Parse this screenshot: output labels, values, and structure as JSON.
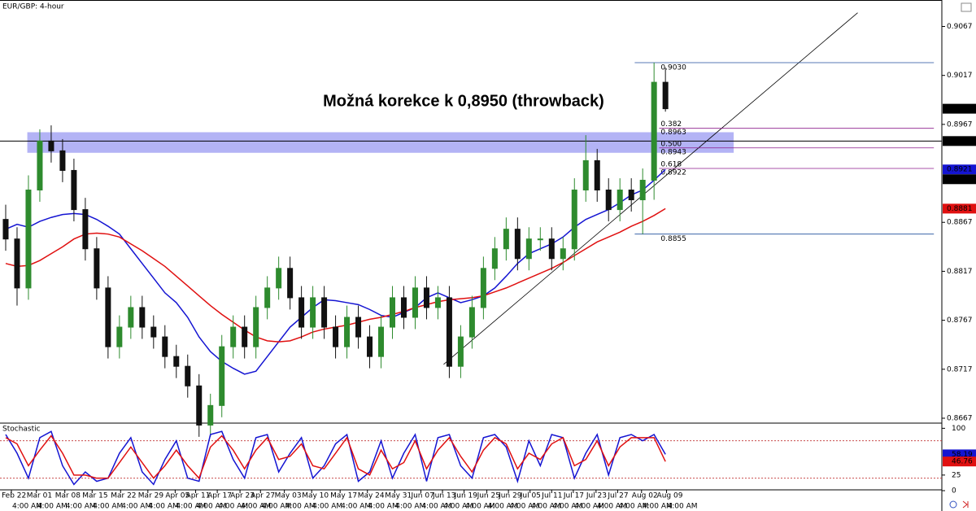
{
  "chart_data": {
    "type": "candlestick",
    "title": "EUR/GBP: 4-hour",
    "annotation": "Možná korekce k 0,8950 (throwback)",
    "up_color": "#2e8b2e",
    "down_color": "#111111",
    "candles": {
      "x": [
        0,
        1,
        2,
        3,
        4,
        5,
        6,
        7,
        8,
        9,
        10,
        11,
        12,
        13,
        14,
        15,
        16,
        17,
        18,
        19,
        20,
        21,
        22,
        23,
        24,
        25,
        26,
        27,
        28,
        29,
        30,
        31,
        32,
        33,
        34,
        35,
        36,
        37,
        38,
        39,
        40,
        41,
        42,
        43,
        44,
        45,
        46,
        47,
        48,
        49,
        50,
        51,
        52,
        53,
        54,
        55,
        56,
        57,
        58
      ],
      "open": [
        0.887,
        0.885,
        0.88,
        0.89,
        0.895,
        0.894,
        0.892,
        0.888,
        0.884,
        0.88,
        0.874,
        0.876,
        0.878,
        0.876,
        0.875,
        0.873,
        0.872,
        0.87,
        0.866,
        0.868,
        0.874,
        0.876,
        0.874,
        0.878,
        0.88,
        0.882,
        0.879,
        0.876,
        0.879,
        0.876,
        0.874,
        0.877,
        0.875,
        0.873,
        0.876,
        0.879,
        0.877,
        0.88,
        0.878,
        0.879,
        0.872,
        0.875,
        0.878,
        0.882,
        0.884,
        0.886,
        0.883,
        0.885,
        0.885,
        0.883,
        0.884,
        0.89,
        0.893,
        0.89,
        0.888,
        0.89,
        0.889,
        0.891,
        0.901
      ],
      "high": [
        0.8885,
        0.8862,
        0.8915,
        0.8962,
        0.8966,
        0.8952,
        0.8932,
        0.8892,
        0.8852,
        0.8812,
        0.8772,
        0.8792,
        0.8792,
        0.8772,
        0.8762,
        0.8742,
        0.8732,
        0.8712,
        0.8692,
        0.8752,
        0.8772,
        0.8772,
        0.8792,
        0.8812,
        0.8832,
        0.8832,
        0.8802,
        0.8802,
        0.8802,
        0.8772,
        0.8782,
        0.8782,
        0.8762,
        0.8772,
        0.8802,
        0.8802,
        0.8812,
        0.8812,
        0.8802,
        0.8802,
        0.8762,
        0.8792,
        0.8832,
        0.8852,
        0.8872,
        0.8872,
        0.8862,
        0.8862,
        0.8862,
        0.8852,
        0.8912,
        0.8956,
        0.8942,
        0.8912,
        0.8912,
        0.8912,
        0.8922,
        0.903,
        0.9025
      ],
      "low": [
        0.8838,
        0.8782,
        0.8788,
        0.8888,
        0.8928,
        0.8908,
        0.8868,
        0.8828,
        0.8788,
        0.8728,
        0.8728,
        0.8748,
        0.8748,
        0.8738,
        0.8718,
        0.8708,
        0.8688,
        0.8648,
        0.8648,
        0.8668,
        0.8728,
        0.8728,
        0.8728,
        0.8768,
        0.8788,
        0.8778,
        0.8748,
        0.8748,
        0.8748,
        0.8728,
        0.8728,
        0.8738,
        0.8718,
        0.8718,
        0.8748,
        0.8758,
        0.8758,
        0.8768,
        0.8768,
        0.8708,
        0.8708,
        0.8738,
        0.8768,
        0.8808,
        0.8828,
        0.8818,
        0.8818,
        0.8838,
        0.8818,
        0.8818,
        0.8828,
        0.8888,
        0.8888,
        0.8868,
        0.8868,
        0.8878,
        0.8855,
        0.889,
        0.898
      ],
      "close": [
        0.885,
        0.88,
        0.89,
        0.895,
        0.894,
        0.892,
        0.888,
        0.884,
        0.88,
        0.874,
        0.876,
        0.878,
        0.876,
        0.875,
        0.873,
        0.872,
        0.87,
        0.866,
        0.868,
        0.874,
        0.876,
        0.874,
        0.878,
        0.88,
        0.882,
        0.879,
        0.876,
        0.879,
        0.876,
        0.874,
        0.877,
        0.875,
        0.873,
        0.876,
        0.879,
        0.877,
        0.88,
        0.878,
        0.879,
        0.872,
        0.875,
        0.878,
        0.882,
        0.884,
        0.886,
        0.883,
        0.885,
        0.885,
        0.883,
        0.884,
        0.89,
        0.893,
        0.89,
        0.888,
        0.89,
        0.889,
        0.891,
        0.901,
        0.8983
      ]
    },
    "lines": [
      {
        "color": "#1414d2",
        "values": [
          0.886,
          0.8865,
          0.8862,
          0.8868,
          0.8872,
          0.8875,
          0.8876,
          0.8875,
          0.887,
          0.8863,
          0.8855,
          0.884,
          0.8825,
          0.881,
          0.8795,
          0.8785,
          0.877,
          0.875,
          0.8735,
          0.8725,
          0.8718,
          0.8712,
          0.8715,
          0.873,
          0.8745,
          0.876,
          0.877,
          0.878,
          0.8788,
          0.8787,
          0.8785,
          0.8783,
          0.8778,
          0.8772,
          0.877,
          0.8775,
          0.878,
          0.879,
          0.8795,
          0.879,
          0.8785,
          0.8788,
          0.8792,
          0.88,
          0.8812,
          0.8825,
          0.8835,
          0.884,
          0.8845,
          0.8852,
          0.8862,
          0.887,
          0.8875,
          0.888,
          0.8887,
          0.8895,
          0.89,
          0.891,
          0.8921
        ]
      },
      {
        "color": "#e01010",
        "values": [
          0.8825,
          0.8822,
          0.8823,
          0.8828,
          0.8835,
          0.8842,
          0.885,
          0.8855,
          0.8856,
          0.8855,
          0.8852,
          0.8845,
          0.8838,
          0.883,
          0.8822,
          0.8812,
          0.8802,
          0.8792,
          0.8782,
          0.8773,
          0.8765,
          0.8757,
          0.875,
          0.8746,
          0.8745,
          0.8746,
          0.875,
          0.8755,
          0.8758,
          0.876,
          0.8762,
          0.8765,
          0.8768,
          0.877,
          0.8773,
          0.8776,
          0.878,
          0.8783,
          0.8786,
          0.8788,
          0.8789,
          0.879,
          0.8792,
          0.8796,
          0.88,
          0.8805,
          0.881,
          0.8815,
          0.882,
          0.8826,
          0.8833,
          0.884,
          0.8847,
          0.8852,
          0.8857,
          0.8863,
          0.8868,
          0.8874,
          0.8881
        ]
      }
    ],
    "xlim": [
      -0.5,
      82.3
    ],
    "xticks": [
      {
        "value": 0.5,
        "label": "Feb 22"
      },
      {
        "value": 2.7,
        "label": "Mar 01"
      },
      {
        "value": 5.2,
        "label": "Mar 08"
      },
      {
        "value": 7.6,
        "label": "Mar 15"
      },
      {
        "value": 10.1,
        "label": "Mar 22"
      },
      {
        "value": 12.5,
        "label": "Mar 29"
      },
      {
        "value": 14.9,
        "label": "Apr 05"
      },
      {
        "value": 16.7,
        "label": "Apr 11"
      },
      {
        "value": 18.6,
        "label": "Apr 17"
      },
      {
        "value": 20.6,
        "label": "Apr 23"
      },
      {
        "value": 22.4,
        "label": "Apr 27"
      },
      {
        "value": 24.5,
        "label": "May 03"
      },
      {
        "value": 26.9,
        "label": "May 10"
      },
      {
        "value": 29.4,
        "label": "May 17"
      },
      {
        "value": 31.8,
        "label": "May 24"
      },
      {
        "value": 34.2,
        "label": "May 31"
      },
      {
        "value": 36.5,
        "label": "Jun 07"
      },
      {
        "value": 38.4,
        "label": "Jun 13"
      },
      {
        "value": 40.3,
        "label": "Jun 19"
      },
      {
        "value": 42.3,
        "label": "Jun 25"
      },
      {
        "value": 44.2,
        "label": "Jun 29"
      },
      {
        "value": 46.1,
        "label": "Jul 05"
      },
      {
        "value": 48.0,
        "label": "Jul 11"
      },
      {
        "value": 49.9,
        "label": "Jul 17"
      },
      {
        "value": 51.9,
        "label": "Jul 23"
      },
      {
        "value": 53.8,
        "label": "Jul 27"
      },
      {
        "value": 55.9,
        "label": "Aug 02"
      },
      {
        "value": 58.1,
        "label": "Aug 09"
      }
    ],
    "time_label": "4:00 AM",
    "ylim": [
      0.8662,
      0.9094
    ],
    "yticks": [
      0.9067,
      0.9017,
      0.8967,
      0.8867,
      0.8817,
      0.8767,
      0.8717,
      0.8667
    ],
    "price_tags": [
      {
        "value": 0.8983,
        "label": "0.8983",
        "color": "#000000"
      },
      {
        "value": 0.895,
        "label": "0.8950",
        "color": "#000000"
      },
      {
        "value": 0.8921,
        "label": "0.8921",
        "color": "#1414d2"
      },
      {
        "value": 0.8911,
        "label": "0.8911",
        "color": "#000000"
      },
      {
        "value": 0.8881,
        "label": "0.8881",
        "color": "#e01010"
      }
    ],
    "hline": {
      "value": 0.895,
      "color": "#000000"
    },
    "zone": {
      "x": [
        1.9,
        64.0
      ],
      "y": [
        0.8938,
        0.8959
      ],
      "color": "#8080ee"
    },
    "trendline": {
      "x": [
        38.5,
        74.9
      ],
      "y": [
        0.8722,
        0.9081
      ],
      "color": "#000000"
    },
    "fib": {
      "x": [
        55.3,
        81.6
      ],
      "color": "#1f4e9c",
      "level_color": "#8b1a8b",
      "high": {
        "value": 0.903,
        "label": "0.9030"
      },
      "low": {
        "value": 0.8855,
        "label": "0.8855"
      },
      "levels": [
        {
          "ratio": 0.382,
          "value": 0.8963
        },
        {
          "ratio": {
            "value": 0.5,
            "label": "0.500"
          },
          "value": 0.8943
        },
        {
          "ratio": 0.618,
          "value": 0.8922
        }
      ]
    },
    "stochastic": {
      "title": "Stochastic",
      "ylim": [
        0,
        107
      ],
      "yticks": [
        100,
        25,
        0
      ],
      "levels": [
        80,
        20
      ],
      "lines": [
        {
          "color": "#1414d2",
          "values": [
            90,
            60,
            20,
            85,
            95,
            40,
            10,
            30,
            15,
            20,
            60,
            85,
            30,
            10,
            50,
            80,
            20,
            15,
            90,
            95,
            50,
            20,
            85,
            90,
            30,
            60,
            85,
            20,
            40,
            75,
            90,
            15,
            30,
            80,
            20,
            60,
            90,
            15,
            85,
            90,
            40,
            20,
            85,
            90,
            70,
            15,
            80,
            40,
            90,
            85,
            20,
            60,
            90,
            25,
            85,
            90,
            80,
            90,
            58.19
          ]
        },
        {
          "color": "#e01010",
          "values": [
            85,
            75,
            40,
            65,
            88,
            60,
            25,
            25,
            20,
            20,
            45,
            70,
            45,
            20,
            40,
            65,
            40,
            20,
            70,
            88,
            65,
            35,
            65,
            85,
            50,
            55,
            75,
            40,
            35,
            60,
            85,
            35,
            25,
            65,
            35,
            45,
            80,
            35,
            65,
            85,
            55,
            30,
            65,
            85,
            75,
            35,
            60,
            50,
            75,
            85,
            40,
            50,
            80,
            40,
            70,
            85,
            85,
            85,
            46.76
          ]
        }
      ]
    }
  }
}
